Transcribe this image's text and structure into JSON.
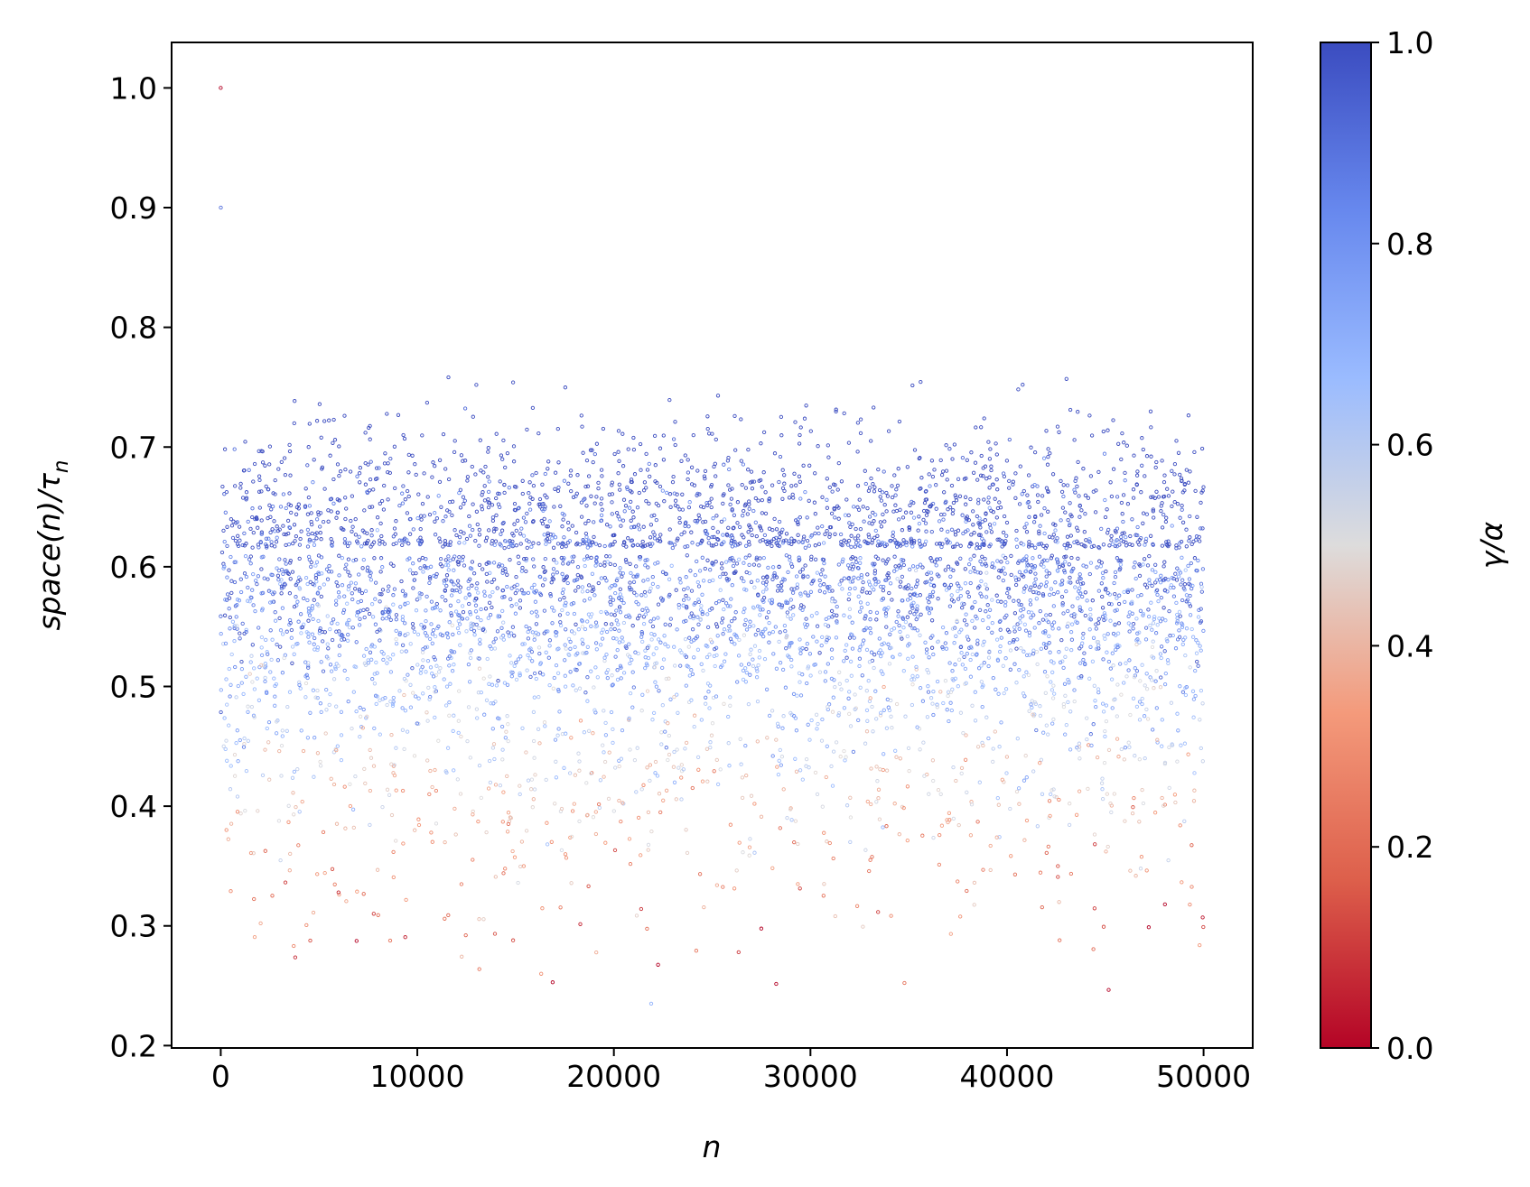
{
  "chart_data": {
    "type": "scatter",
    "title": "",
    "xlabel": "n",
    "ylabel": "space(n)/τ_n",
    "ylabel_parts": {
      "main": "space(n)/τ",
      "subscript": "n"
    },
    "xlim": [
      -2500,
      52500
    ],
    "ylim": [
      0.198,
      1.038
    ],
    "x_ticks": [
      0,
      10000,
      20000,
      30000,
      40000,
      50000
    ],
    "x_tick_labels": [
      "0",
      "10000",
      "20000",
      "30000",
      "40000",
      "50000"
    ],
    "y_ticks": [
      0.2,
      0.3,
      0.4,
      0.5,
      0.6,
      0.7,
      0.8,
      0.9,
      1.0
    ],
    "y_tick_labels": [
      "0.2",
      "0.3",
      "0.4",
      "0.5",
      "0.6",
      "0.7",
      "0.8",
      "0.9",
      "1.0"
    ],
    "grid": false,
    "point_count_approx": 50000,
    "x_range": [
      1,
      50000
    ],
    "y_range": [
      0.235,
      1.0
    ],
    "dense_band_y": [
      0.48,
      0.72
    ],
    "white_gap_y": 0.613,
    "notable_points": [
      {
        "x": 1,
        "y": 1.0,
        "c": 0.0
      },
      {
        "x": 2,
        "y": 0.9,
        "c": 0.9
      },
      {
        "x": 21900,
        "y": 0.235,
        "c": 0.7
      },
      {
        "x": 16300,
        "y": 0.26,
        "c": 0.3
      }
    ],
    "colorbar": {
      "label": "γ/α",
      "colormap": "coolwarm",
      "range": [
        0.0,
        1.0
      ],
      "ticks": [
        0.0,
        0.2,
        0.4,
        0.6,
        0.8,
        1.0
      ],
      "tick_labels": [
        "0.0",
        "0.2",
        "0.4",
        "0.6",
        "0.8",
        "1.0"
      ],
      "colors": [
        "#b40426",
        "#dd5f4b",
        "#f49a7b",
        "#dddcdc",
        "#9abbff",
        "#6788ee",
        "#3b4cc0"
      ]
    }
  }
}
